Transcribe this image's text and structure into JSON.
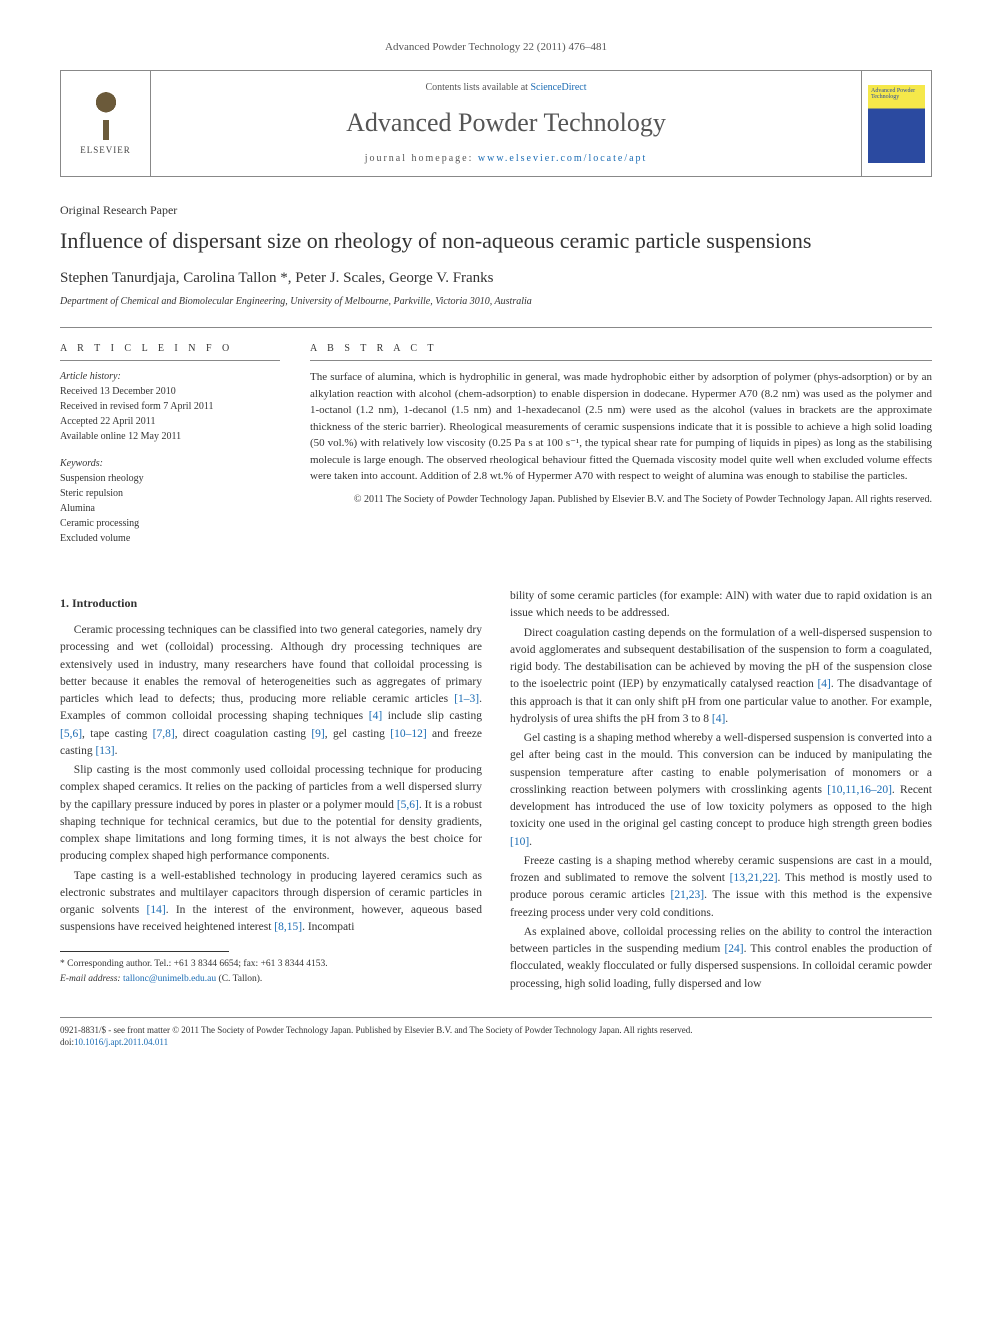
{
  "journal_ref": "Advanced Powder Technology 22 (2011) 476–481",
  "header": {
    "elsevier_label": "ELSEVIER",
    "contents_prefix": "Contents lists available at ",
    "contents_link_text": "ScienceDirect",
    "journal_title": "Advanced Powder Technology",
    "homepage_prefix": "journal homepage: ",
    "homepage_link_text": "www.elsevier.com/locate/apt",
    "cover_text": "Advanced Powder Technology"
  },
  "paper_type": "Original Research Paper",
  "title": "Influence of dispersant size on rheology of non-aqueous ceramic particle suspensions",
  "authors_html": "Stephen Tanurdjaja, Carolina Tallon *, Peter J. Scales, George V. Franks",
  "affiliation": "Department of Chemical and Biomolecular Engineering, University of Melbourne, Parkville, Victoria 3010, Australia",
  "article_info": {
    "heading": "A R T I C L E   I N F O",
    "history_label": "Article history:",
    "received": "Received 13 December 2010",
    "revised": "Received in revised form 7 April 2011",
    "accepted": "Accepted 22 April 2011",
    "online": "Available online 12 May 2011",
    "keywords_label": "Keywords:",
    "keywords": [
      "Suspension rheology",
      "Steric repulsion",
      "Alumina",
      "Ceramic processing",
      "Excluded volume"
    ]
  },
  "abstract": {
    "heading": "A B S T R A C T",
    "text": "The surface of alumina, which is hydrophilic in general, was made hydrophobic either by adsorption of polymer (phys-adsorption) or by an alkylation reaction with alcohol (chem-adsorption) to enable dispersion in dodecane. Hypermer A70 (8.2 nm) was used as the polymer and 1-octanol (1.2 nm), 1-decanol (1.5 nm) and 1-hexadecanol (2.5 nm) were used as the alcohol (values in brackets are the approximate thickness of the steric barrier). Rheological measurements of ceramic suspensions indicate that it is possible to achieve a high solid loading (50 vol.%) with relatively low viscosity (0.25 Pa s at 100 s⁻¹, the typical shear rate for pumping of liquids in pipes) as long as the stabilising molecule is large enough. The observed rheological behaviour fitted the Quemada viscosity model quite well when excluded volume effects were taken into account. Addition of 2.8 wt.% of Hypermer A70 with respect to weight of alumina was enough to stabilise the particles.",
    "copyright": "© 2011 The Society of Powder Technology Japan. Published by Elsevier B.V. and The Society of Powder Technology Japan. All rights reserved."
  },
  "section1": {
    "heading": "1. Introduction",
    "p1a": "Ceramic processing techniques can be classified into two general categories, namely dry processing and wet (colloidal) processing. Although dry processing techniques are extensively used in industry, many researchers have found that colloidal processing is better because it enables the removal of heterogeneities such as aggregates of primary particles which lead to defects; thus, producing more reliable ceramic articles ",
    "p1b": ". Examples of common colloidal processing shaping techniques ",
    "p1c": " include slip casting ",
    "p1d": ", tape casting ",
    "p1e": ", direct coagulation casting ",
    "p1f": ", gel casting ",
    "p1g": " and freeze casting ",
    "p1h": ".",
    "p2a": "Slip casting is the most commonly used colloidal processing technique for producing complex shaped ceramics. It relies on the packing of particles from a well dispersed slurry by the capillary pressure induced by pores in plaster or a polymer mould ",
    "p2b": ". It is a robust shaping technique for technical ceramics, but due to the potential for density gradients, complex shape limitations and long forming times, it is not always the best choice for producing complex shaped high performance components.",
    "p3a": "Tape casting is a well-established technology in producing layered ceramics such as electronic substrates and multilayer capacitors through dispersion of ceramic particles in organic solvents ",
    "p3b": ". In the interest of the environment, however, aqueous based suspensions have received heightened interest ",
    "p3c": ". Incompati",
    "p4": "bility of some ceramic particles (for example: AlN) with water due to rapid oxidation is an issue which needs to be addressed.",
    "p5a": "Direct coagulation casting depends on the formulation of a well-dispersed suspension to avoid agglomerates and subsequent destabilisation of the suspension to form a coagulated, rigid body. The destabilisation can be achieved by moving the pH of the suspension close to the isoelectric point (IEP) by enzymatically catalysed reaction ",
    "p5b": ". The disadvantage of this approach is that it can only shift pH from one particular value to another. For example, hydrolysis of urea shifts the pH from 3 to 8 ",
    "p5c": ".",
    "p6a": "Gel casting is a shaping method whereby a well-dispersed suspension is converted into a gel after being cast in the mould. This conversion can be induced by manipulating the suspension temperature after casting to enable polymerisation of monomers or a crosslinking reaction between polymers with crosslinking agents ",
    "p6b": ". Recent development has introduced the use of low toxicity polymers as opposed to the high toxicity one used in the original gel casting concept to produce high strength green bodies ",
    "p6c": ".",
    "p7a": "Freeze casting is a shaping method whereby ceramic suspensions are cast in a mould, frozen and sublimated to remove the solvent ",
    "p7b": ". This method is mostly used to produce porous ceramic articles ",
    "p7c": ". The issue with this method is the expensive freezing process under very cold conditions.",
    "p8a": "As explained above, colloidal processing relies on the ability to control the interaction between particles in the suspending medium ",
    "p8b": ". This control enables the production of flocculated, weakly flocculated or fully dispersed suspensions. In colloidal ceramic powder processing, high solid loading, fully dispersed and low"
  },
  "refs": {
    "r1_3": "[1–3]",
    "r4": "[4]",
    "r5_6": "[5,6]",
    "r7_8": "[7,8]",
    "r9": "[9]",
    "r10_12": "[10–12]",
    "r13": "[13]",
    "r14": "[14]",
    "r8_15": "[8,15]",
    "r10_11_16_20": "[10,11,16–20]",
    "r10": "[10]",
    "r13_21_22": "[13,21,22]",
    "r21_23": "[21,23]",
    "r24": "[24]"
  },
  "footnote": {
    "corr": "* Corresponding author. Tel.: +61 3 8344 6654; fax: +61 3 8344 4153.",
    "email_label": "E-mail address: ",
    "email": "tallonc@unimelb.edu.au",
    "email_suffix": " (C. Tallon)."
  },
  "footer": {
    "line1": "0921-8831/$ - see front matter © 2011 The Society of Powder Technology Japan. Published by Elsevier B.V. and The Society of Powder Technology Japan. All rights reserved.",
    "doi_label": "doi:",
    "doi": "10.1016/j.apt.2011.04.011"
  },
  "colors": {
    "link": "#1a6bb3",
    "text": "#333333",
    "border": "#888888",
    "cover_top": "#f5e84a",
    "cover_bottom": "#2b4aa0"
  },
  "typography": {
    "body_fontsize_pt": 11.5,
    "title_fontsize_pt": 22,
    "journal_title_fontsize_pt": 26,
    "meta_fontsize_pt": 10
  }
}
